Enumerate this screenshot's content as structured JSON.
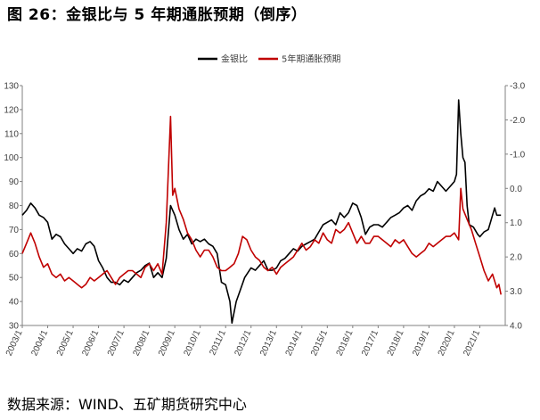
{
  "header": {
    "title": "图 26：金银比与 5 年期通胀预期（倒序）"
  },
  "footer": {
    "source": "数据来源：WIND、五矿期货研究中心"
  },
  "chart_data": {
    "type": "line",
    "x_tick_labels": [
      "2003/1",
      "2004/1",
      "2005/1",
      "2006/1",
      "2007/1",
      "2008/1",
      "2009/1",
      "2010/1",
      "2011/1",
      "2012/1",
      "2013/1",
      "2014/1",
      "2015/1",
      "2016/1",
      "2017/1",
      "2018/1",
      "2019/1",
      "2020/1",
      "2021/1"
    ],
    "y_left": {
      "min": 30,
      "max": 130,
      "ticks": [
        "130",
        "120",
        "110",
        "100",
        "90",
        "80",
        "70",
        "60",
        "50",
        "40",
        "30"
      ]
    },
    "y_right": {
      "inverted": true,
      "min": -3.0,
      "max": 4.0,
      "ticks": [
        "-3.0",
        "-2.0",
        "-1.0",
        "0.0",
        "1.0",
        "2.0",
        "3.0",
        "4.0"
      ]
    },
    "legend_position": "top-center",
    "grid": false,
    "series": [
      {
        "name": "金银比",
        "color": "#000000",
        "axis": "left",
        "points": [
          [
            "2003-01",
            76
          ],
          [
            "2003-03",
            78
          ],
          [
            "2003-05",
            81
          ],
          [
            "2003-07",
            79
          ],
          [
            "2003-09",
            76
          ],
          [
            "2003-11",
            75
          ],
          [
            "2004-01",
            73
          ],
          [
            "2004-03",
            66
          ],
          [
            "2004-05",
            68
          ],
          [
            "2004-07",
            67
          ],
          [
            "2004-09",
            64
          ],
          [
            "2004-11",
            62
          ],
          [
            "2005-01",
            60
          ],
          [
            "2005-03",
            62
          ],
          [
            "2005-05",
            61
          ],
          [
            "2005-07",
            64
          ],
          [
            "2005-09",
            65
          ],
          [
            "2005-11",
            63
          ],
          [
            "2006-01",
            57
          ],
          [
            "2006-03",
            54
          ],
          [
            "2006-05",
            50
          ],
          [
            "2006-07",
            48
          ],
          [
            "2006-09",
            48
          ],
          [
            "2006-11",
            47
          ],
          [
            "2007-01",
            49
          ],
          [
            "2007-03",
            48
          ],
          [
            "2007-05",
            50
          ],
          [
            "2007-07",
            52
          ],
          [
            "2007-09",
            53
          ],
          [
            "2007-11",
            55
          ],
          [
            "2008-01",
            56
          ],
          [
            "2008-03",
            50
          ],
          [
            "2008-05",
            52
          ],
          [
            "2008-07",
            50
          ],
          [
            "2008-09",
            58
          ],
          [
            "2008-11",
            80
          ],
          [
            "2009-01",
            76
          ],
          [
            "2009-03",
            70
          ],
          [
            "2009-05",
            66
          ],
          [
            "2009-07",
            68
          ],
          [
            "2009-09",
            64
          ],
          [
            "2009-11",
            66
          ],
          [
            "2010-01",
            65
          ],
          [
            "2010-03",
            66
          ],
          [
            "2010-05",
            64
          ],
          [
            "2010-07",
            63
          ],
          [
            "2010-09",
            60
          ],
          [
            "2010-11",
            48
          ],
          [
            "2011-01",
            47
          ],
          [
            "2011-03",
            40
          ],
          [
            "2011-04",
            31
          ],
          [
            "2011-06",
            40
          ],
          [
            "2011-08",
            45
          ],
          [
            "2011-10",
            50
          ],
          [
            "2012-01",
            54
          ],
          [
            "2012-03",
            53
          ],
          [
            "2012-05",
            55
          ],
          [
            "2012-07",
            57
          ],
          [
            "2012-09",
            53
          ],
          [
            "2012-11",
            53
          ],
          [
            "2013-01",
            54
          ],
          [
            "2013-03",
            57
          ],
          [
            "2013-05",
            58
          ],
          [
            "2013-07",
            60
          ],
          [
            "2013-09",
            62
          ],
          [
            "2013-11",
            61
          ],
          [
            "2014-01",
            63
          ],
          [
            "2014-03",
            64
          ],
          [
            "2014-05",
            65
          ],
          [
            "2014-07",
            66
          ],
          [
            "2014-09",
            69
          ],
          [
            "2014-11",
            72
          ],
          [
            "2015-01",
            73
          ],
          [
            "2015-03",
            74
          ],
          [
            "2015-05",
            72
          ],
          [
            "2015-07",
            77
          ],
          [
            "2015-09",
            75
          ],
          [
            "2015-11",
            77
          ],
          [
            "2016-01",
            81
          ],
          [
            "2016-03",
            80
          ],
          [
            "2016-05",
            75
          ],
          [
            "2016-07",
            68
          ],
          [
            "2016-09",
            71
          ],
          [
            "2016-11",
            72
          ],
          [
            "2017-01",
            72
          ],
          [
            "2017-03",
            71
          ],
          [
            "2017-05",
            73
          ],
          [
            "2017-07",
            75
          ],
          [
            "2017-09",
            76
          ],
          [
            "2017-11",
            77
          ],
          [
            "2018-01",
            79
          ],
          [
            "2018-03",
            80
          ],
          [
            "2018-05",
            78
          ],
          [
            "2018-07",
            82
          ],
          [
            "2018-09",
            84
          ],
          [
            "2018-11",
            85
          ],
          [
            "2019-01",
            87
          ],
          [
            "2019-03",
            86
          ],
          [
            "2019-05",
            90
          ],
          [
            "2019-07",
            88
          ],
          [
            "2019-09",
            86
          ],
          [
            "2019-11",
            88
          ],
          [
            "2020-01",
            90
          ],
          [
            "2020-02",
            93
          ],
          [
            "2020-03",
            124
          ],
          [
            "2020-04",
            110
          ],
          [
            "2020-05",
            100
          ],
          [
            "2020-06",
            98
          ],
          [
            "2020-07",
            80
          ],
          [
            "2020-08",
            72
          ],
          [
            "2020-10",
            71
          ],
          [
            "2020-12",
            68
          ],
          [
            "2021-01",
            67
          ],
          [
            "2021-03",
            69
          ],
          [
            "2021-05",
            70
          ],
          [
            "2021-06",
            73
          ],
          [
            "2021-08",
            79
          ],
          [
            "2021-09",
            76
          ],
          [
            "2021-11",
            76
          ]
        ]
      },
      {
        "name": "5年期通胀预期",
        "color": "#c00000",
        "axis": "right",
        "points": [
          [
            "2003-01",
            1.9
          ],
          [
            "2003-03",
            1.6
          ],
          [
            "2003-05",
            1.3
          ],
          [
            "2003-07",
            1.6
          ],
          [
            "2003-09",
            2.0
          ],
          [
            "2003-11",
            2.3
          ],
          [
            "2004-01",
            2.2
          ],
          [
            "2004-03",
            2.5
          ],
          [
            "2004-05",
            2.6
          ],
          [
            "2004-07",
            2.5
          ],
          [
            "2004-09",
            2.7
          ],
          [
            "2004-11",
            2.6
          ],
          [
            "2005-01",
            2.7
          ],
          [
            "2005-03",
            2.8
          ],
          [
            "2005-05",
            2.9
          ],
          [
            "2005-07",
            2.8
          ],
          [
            "2005-09",
            2.6
          ],
          [
            "2005-11",
            2.7
          ],
          [
            "2006-01",
            2.6
          ],
          [
            "2006-03",
            2.5
          ],
          [
            "2006-05",
            2.4
          ],
          [
            "2006-07",
            2.6
          ],
          [
            "2006-09",
            2.8
          ],
          [
            "2006-11",
            2.6
          ],
          [
            "2007-01",
            2.5
          ],
          [
            "2007-03",
            2.4
          ],
          [
            "2007-05",
            2.4
          ],
          [
            "2007-07",
            2.5
          ],
          [
            "2007-09",
            2.6
          ],
          [
            "2007-11",
            2.3
          ],
          [
            "2008-01",
            2.2
          ],
          [
            "2008-03",
            2.4
          ],
          [
            "2008-05",
            2.2
          ],
          [
            "2008-07",
            2.5
          ],
          [
            "2008-09",
            1.0
          ],
          [
            "2008-11",
            -2.1
          ],
          [
            "2008-12",
            0.2
          ],
          [
            "2009-01",
            0.0
          ],
          [
            "2009-03",
            0.6
          ],
          [
            "2009-05",
            0.9
          ],
          [
            "2009-07",
            1.3
          ],
          [
            "2009-09",
            1.5
          ],
          [
            "2009-11",
            1.8
          ],
          [
            "2010-01",
            2.0
          ],
          [
            "2010-03",
            1.8
          ],
          [
            "2010-05",
            1.8
          ],
          [
            "2010-07",
            2.0
          ],
          [
            "2010-09",
            2.3
          ],
          [
            "2010-11",
            2.4
          ],
          [
            "2011-01",
            2.4
          ],
          [
            "2011-03",
            2.3
          ],
          [
            "2011-05",
            2.2
          ],
          [
            "2011-07",
            1.9
          ],
          [
            "2011-09",
            1.4
          ],
          [
            "2011-11",
            1.5
          ],
          [
            "2012-01",
            1.8
          ],
          [
            "2012-03",
            2.0
          ],
          [
            "2012-05",
            2.1
          ],
          [
            "2012-07",
            2.3
          ],
          [
            "2012-09",
            2.4
          ],
          [
            "2012-11",
            2.3
          ],
          [
            "2013-01",
            2.5
          ],
          [
            "2013-03",
            2.3
          ],
          [
            "2013-05",
            2.2
          ],
          [
            "2013-07",
            2.1
          ],
          [
            "2013-09",
            2.0
          ],
          [
            "2013-11",
            1.8
          ],
          [
            "2014-01",
            1.6
          ],
          [
            "2014-03",
            1.8
          ],
          [
            "2014-05",
            1.7
          ],
          [
            "2014-07",
            1.5
          ],
          [
            "2014-09",
            1.6
          ],
          [
            "2014-11",
            1.3
          ],
          [
            "2015-01",
            1.5
          ],
          [
            "2015-03",
            1.6
          ],
          [
            "2015-05",
            1.2
          ],
          [
            "2015-07",
            1.3
          ],
          [
            "2015-09",
            1.2
          ],
          [
            "2015-11",
            1.0
          ],
          [
            "2016-01",
            1.3
          ],
          [
            "2016-03",
            1.6
          ],
          [
            "2016-05",
            1.4
          ],
          [
            "2016-07",
            1.6
          ],
          [
            "2016-09",
            1.6
          ],
          [
            "2016-11",
            1.4
          ],
          [
            "2017-01",
            1.4
          ],
          [
            "2017-03",
            1.5
          ],
          [
            "2017-05",
            1.6
          ],
          [
            "2017-07",
            1.7
          ],
          [
            "2017-09",
            1.5
          ],
          [
            "2017-11",
            1.6
          ],
          [
            "2018-01",
            1.5
          ],
          [
            "2018-03",
            1.7
          ],
          [
            "2018-05",
            1.9
          ],
          [
            "2018-07",
            2.0
          ],
          [
            "2018-09",
            1.9
          ],
          [
            "2018-11",
            1.8
          ],
          [
            "2019-01",
            1.6
          ],
          [
            "2019-03",
            1.7
          ],
          [
            "2019-05",
            1.6
          ],
          [
            "2019-07",
            1.5
          ],
          [
            "2019-09",
            1.4
          ],
          [
            "2019-11",
            1.4
          ],
          [
            "2020-01",
            1.3
          ],
          [
            "2020-02",
            1.4
          ],
          [
            "2020-03",
            1.5
          ],
          [
            "2020-04",
            0.0
          ],
          [
            "2020-05",
            0.6
          ],
          [
            "2020-07",
            0.9
          ],
          [
            "2020-09",
            1.2
          ],
          [
            "2020-11",
            1.6
          ],
          [
            "2021-01",
            2.0
          ],
          [
            "2021-03",
            2.4
          ],
          [
            "2021-05",
            2.7
          ],
          [
            "2021-07",
            2.5
          ],
          [
            "2021-09",
            2.9
          ],
          [
            "2021-10",
            2.8
          ],
          [
            "2021-11",
            3.1
          ]
        ]
      }
    ]
  }
}
